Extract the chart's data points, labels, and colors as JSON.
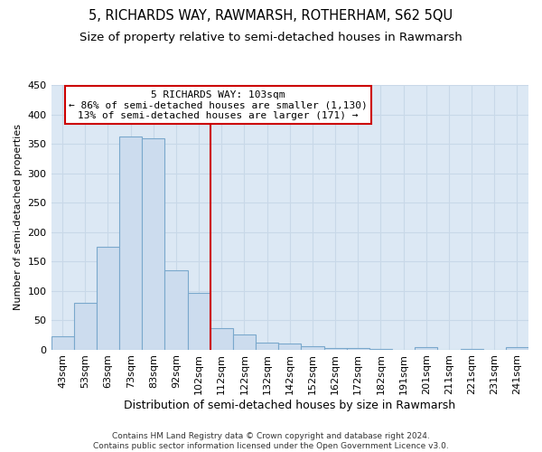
{
  "title": "5, RICHARDS WAY, RAWMARSH, ROTHERHAM, S62 5QU",
  "subtitle": "Size of property relative to semi-detached houses in Rawmarsh",
  "xlabel": "Distribution of semi-detached houses by size in Rawmarsh",
  "ylabel": "Number of semi-detached properties",
  "categories": [
    "43sqm",
    "53sqm",
    "63sqm",
    "73sqm",
    "83sqm",
    "92sqm",
    "102sqm",
    "112sqm",
    "122sqm",
    "132sqm",
    "142sqm",
    "152sqm",
    "162sqm",
    "172sqm",
    "182sqm",
    "191sqm",
    "201sqm",
    "211sqm",
    "221sqm",
    "231sqm",
    "241sqm"
  ],
  "values": [
    22,
    80,
    175,
    362,
    360,
    135,
    97,
    37,
    26,
    11,
    10,
    5,
    3,
    2,
    1,
    0,
    4,
    0,
    1,
    0,
    4
  ],
  "bar_color": "#ccdcee",
  "bar_edgecolor": "#7aa8cc",
  "vline_color": "#cc0000",
  "vline_index": 6,
  "annotation_text": "5 RICHARDS WAY: 103sqm\n← 86% of semi-detached houses are smaller (1,130)\n13% of semi-detached houses are larger (171) →",
  "annotation_box_edgecolor": "#cc0000",
  "annotation_box_facecolor": "#ffffff",
  "footer": "Contains HM Land Registry data © Crown copyright and database right 2024.\nContains public sector information licensed under the Open Government Licence v3.0.",
  "ylim": [
    0,
    450
  ],
  "yticks": [
    0,
    50,
    100,
    150,
    200,
    250,
    300,
    350,
    400,
    450
  ],
  "grid_color": "#c8d8e8",
  "bg_color": "#dce8f4",
  "title_fontsize": 10.5,
  "subtitle_fontsize": 9.5,
  "xlabel_fontsize": 9,
  "ylabel_fontsize": 8,
  "tick_fontsize": 8,
  "footer_fontsize": 6.5
}
